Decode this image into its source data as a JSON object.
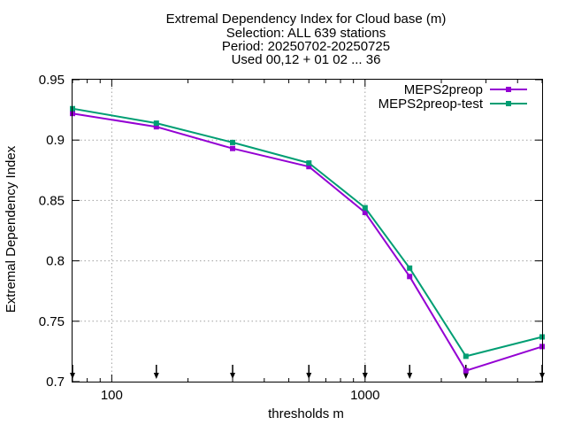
{
  "chart_data": {
    "type": "line",
    "title": [
      "Extremal Dependency Index  for Cloud base (m)",
      "Selection: ALL    639 stations",
      "Period: 20250702-20250725",
      "Used 00,12 + 01 02 ... 36"
    ],
    "xlabel": "thresholds m",
    "ylabel": "Extremal Dependency Index",
    "x_scale": "log",
    "xlim": [
      70,
      5000
    ],
    "ylim": [
      0.7,
      0.95
    ],
    "x_ticks": [
      100,
      1000
    ],
    "x_tick_labels": [
      "100",
      "1000"
    ],
    "y_ticks": [
      0.7,
      0.75,
      0.8,
      0.85,
      0.9,
      0.95
    ],
    "y_tick_labels": [
      "0.7",
      "0.75",
      "0.8",
      "0.85",
      "0.9",
      "0.95"
    ],
    "grid": true,
    "legend_position": "top-right",
    "markers_on_axis_x": [
      70,
      150,
      300,
      600,
      1000,
      1500,
      2500,
      5000
    ],
    "series": [
      {
        "name": "MEPS2preop",
        "color": "#9400d3",
        "x": [
          70,
          150,
          300,
          600,
          1000,
          1500,
          2500,
          5000
        ],
        "values": [
          0.922,
          0.911,
          0.893,
          0.878,
          0.84,
          0.787,
          0.709,
          0.729
        ]
      },
      {
        "name": "MEPS2preop-test",
        "color": "#009e73",
        "x": [
          70,
          150,
          300,
          600,
          1000,
          1500,
          2500,
          5000
        ],
        "values": [
          0.926,
          0.914,
          0.898,
          0.881,
          0.844,
          0.794,
          0.721,
          0.737
        ]
      }
    ]
  }
}
